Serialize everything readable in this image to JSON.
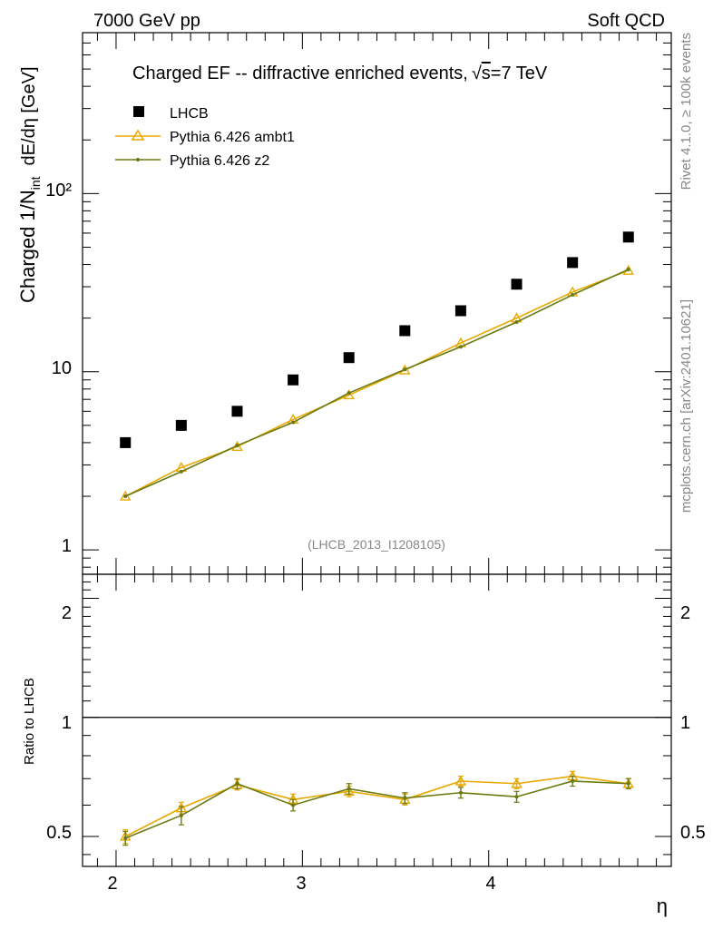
{
  "header": {
    "left": "7000 GeV pp",
    "right": "Soft QCD"
  },
  "side": {
    "rivet": "Rivet 4.1.0, ≥ 100k events",
    "mcplots": "mcplots.cern.ch [arXiv:2401.10621]"
  },
  "chart_data": {
    "type": "scatter",
    "title_pre": "Charged EF -- diffractive enriched events,",
    "title_root": "s",
    "title_post": "=7 TeV",
    "analysis_tag": "(LHCB_2013_I1208105)",
    "ylabel_main": "Charged 1/N",
    "ylabel_sub": "int",
    "ylabel_unit": "dE/dη [GeV]",
    "ylabel_ratio": "Ratio to LHCB",
    "xlabel": "η",
    "xlim": [
      1.82,
      4.98
    ],
    "ylim_main": [
      0.73,
      800
    ],
    "ylim_ratio": [
      0.42,
      2.3
    ],
    "x_ticks": [
      "2",
      "3",
      "4"
    ],
    "y_ticks_main": [
      "1",
      "10",
      "10²"
    ],
    "y_ticks_ratio": [
      "0.5",
      "1",
      "2"
    ],
    "x": [
      2.05,
      2.35,
      2.65,
      2.95,
      3.25,
      3.55,
      3.85,
      4.15,
      4.45,
      4.75
    ],
    "series": [
      {
        "name": "LHCB",
        "color": "#000000",
        "marker": "square",
        "values": [
          4.0,
          5.0,
          6.0,
          9.0,
          12.0,
          17.0,
          22.0,
          31.0,
          41.0,
          57.0
        ]
      },
      {
        "name": "Pythia 6.426 ambt1",
        "color": "#e8a800",
        "marker": "triangle",
        "values": [
          2.0,
          2.9,
          3.8,
          5.4,
          7.4,
          10.2,
          14.5,
          20.0,
          28.0,
          37.0
        ],
        "ratio": [
          0.5,
          0.59,
          0.675,
          0.62,
          0.65,
          0.62,
          0.69,
          0.68,
          0.71,
          0.68
        ],
        "ratio_err": [
          0.02,
          0.02,
          0.02,
          0.02,
          0.02,
          0.02,
          0.02,
          0.02,
          0.02,
          0.02
        ]
      },
      {
        "name": "Pythia 6.426 z2",
        "color": "#6b7a10",
        "marker": "dot",
        "values": [
          2.0,
          2.75,
          3.85,
          5.2,
          7.6,
          10.3,
          13.8,
          19.0,
          27.0,
          37.5
        ],
        "ratio": [
          0.495,
          0.565,
          0.68,
          0.6,
          0.66,
          0.625,
          0.645,
          0.63,
          0.69,
          0.68
        ],
        "ratio_err": [
          0.02,
          0.03,
          0.02,
          0.02,
          0.02,
          0.02,
          0.02,
          0.02,
          0.02,
          0.02
        ]
      }
    ]
  }
}
